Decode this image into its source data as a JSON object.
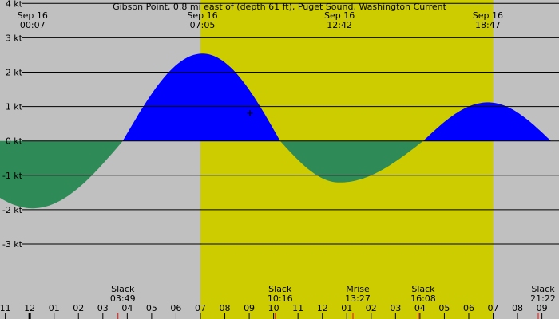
{
  "chart_data": {
    "type": "area",
    "title": "Gibson Point, 0.8 mi east of (depth 61 ft), Puget Sound, Washington Current",
    "xlabel": "",
    "ylabel": "",
    "x_unit": "hours",
    "x_range": [
      "Sep 15 22:47",
      "Sep 16 21:42"
    ],
    "y_unit": "kt",
    "ylim": [
      -4.3,
      4.1
    ],
    "y_ticks": [
      {
        "value": 4,
        "label": "4 kt"
      },
      {
        "value": 3,
        "label": "3 kt"
      },
      {
        "value": 2,
        "label": "2 kt"
      },
      {
        "value": 1,
        "label": "1 kt"
      },
      {
        "value": 0,
        "label": "0 kt"
      },
      {
        "value": -1,
        "label": "-1 kt"
      },
      {
        "value": -2,
        "label": "-2 kt"
      },
      {
        "value": -3,
        "label": "-3 kt"
      }
    ],
    "grid": true,
    "daylight": {
      "start": "07:00",
      "end": "19:00"
    },
    "colors": {
      "night": "#c0c0c0",
      "day": "#cccc00",
      "flood": "#0000ff",
      "ebb": "#2e8b57",
      "grid": "#000000",
      "marker": "#ff0000"
    },
    "top_labels": [
      {
        "date": "Sep 16",
        "time": "00:07"
      },
      {
        "date": "Sep 16",
        "time": "07:05"
      },
      {
        "date": "Sep 16",
        "time": "12:42"
      },
      {
        "date": "Sep 16",
        "time": "18:47"
      }
    ],
    "events": [
      {
        "time": "00:07",
        "speed_kt": -1.96,
        "kind": "max ebb"
      },
      {
        "time": "03:49",
        "speed_kt": 0,
        "kind": "slack"
      },
      {
        "time": "07:05",
        "speed_kt": 2.54,
        "kind": "max flood"
      },
      {
        "time": "10:16",
        "speed_kt": 0,
        "kind": "slack"
      },
      {
        "time": "12:42",
        "speed_kt": -1.21,
        "kind": "max ebb"
      },
      {
        "time": "16:08",
        "speed_kt": 0,
        "kind": "slack"
      },
      {
        "time": "18:47",
        "speed_kt": 1.12,
        "kind": "max flood"
      },
      {
        "time": "21:22",
        "speed_kt": 0,
        "kind": "slack"
      }
    ],
    "bottom_events": [
      {
        "title": "Slack",
        "time": "03:49"
      },
      {
        "title": "Slack",
        "time": "10:16"
      },
      {
        "title": "Mrise",
        "time": "13:27"
      },
      {
        "title": "Slack",
        "time": "16:08"
      },
      {
        "title": "Slack",
        "time": "21:22"
      }
    ],
    "hour_ticks": [
      {
        "hour": 23,
        "label": "11"
      },
      {
        "hour": 24,
        "label": "12"
      },
      {
        "hour": 25,
        "label": "01"
      },
      {
        "hour": 26,
        "label": "02"
      },
      {
        "hour": 27,
        "label": "03"
      },
      {
        "hour": 28,
        "label": "04"
      },
      {
        "hour": 29,
        "label": "05"
      },
      {
        "hour": 30,
        "label": "06"
      },
      {
        "hour": 31,
        "label": "07"
      },
      {
        "hour": 32,
        "label": "08"
      },
      {
        "hour": 33,
        "label": "09"
      },
      {
        "hour": 34,
        "label": "10"
      },
      {
        "hour": 35,
        "label": "11"
      },
      {
        "hour": 36,
        "label": "12"
      },
      {
        "hour": 37,
        "label": "01"
      },
      {
        "hour": 38,
        "label": "02"
      },
      {
        "hour": 39,
        "label": "03"
      },
      {
        "hour": 40,
        "label": "04"
      },
      {
        "hour": 41,
        "label": "05"
      },
      {
        "hour": 42,
        "label": "06"
      },
      {
        "hour": 43,
        "label": "07"
      },
      {
        "hour": 44,
        "label": "08"
      },
      {
        "hour": 45,
        "label": "09"
      }
    ]
  }
}
